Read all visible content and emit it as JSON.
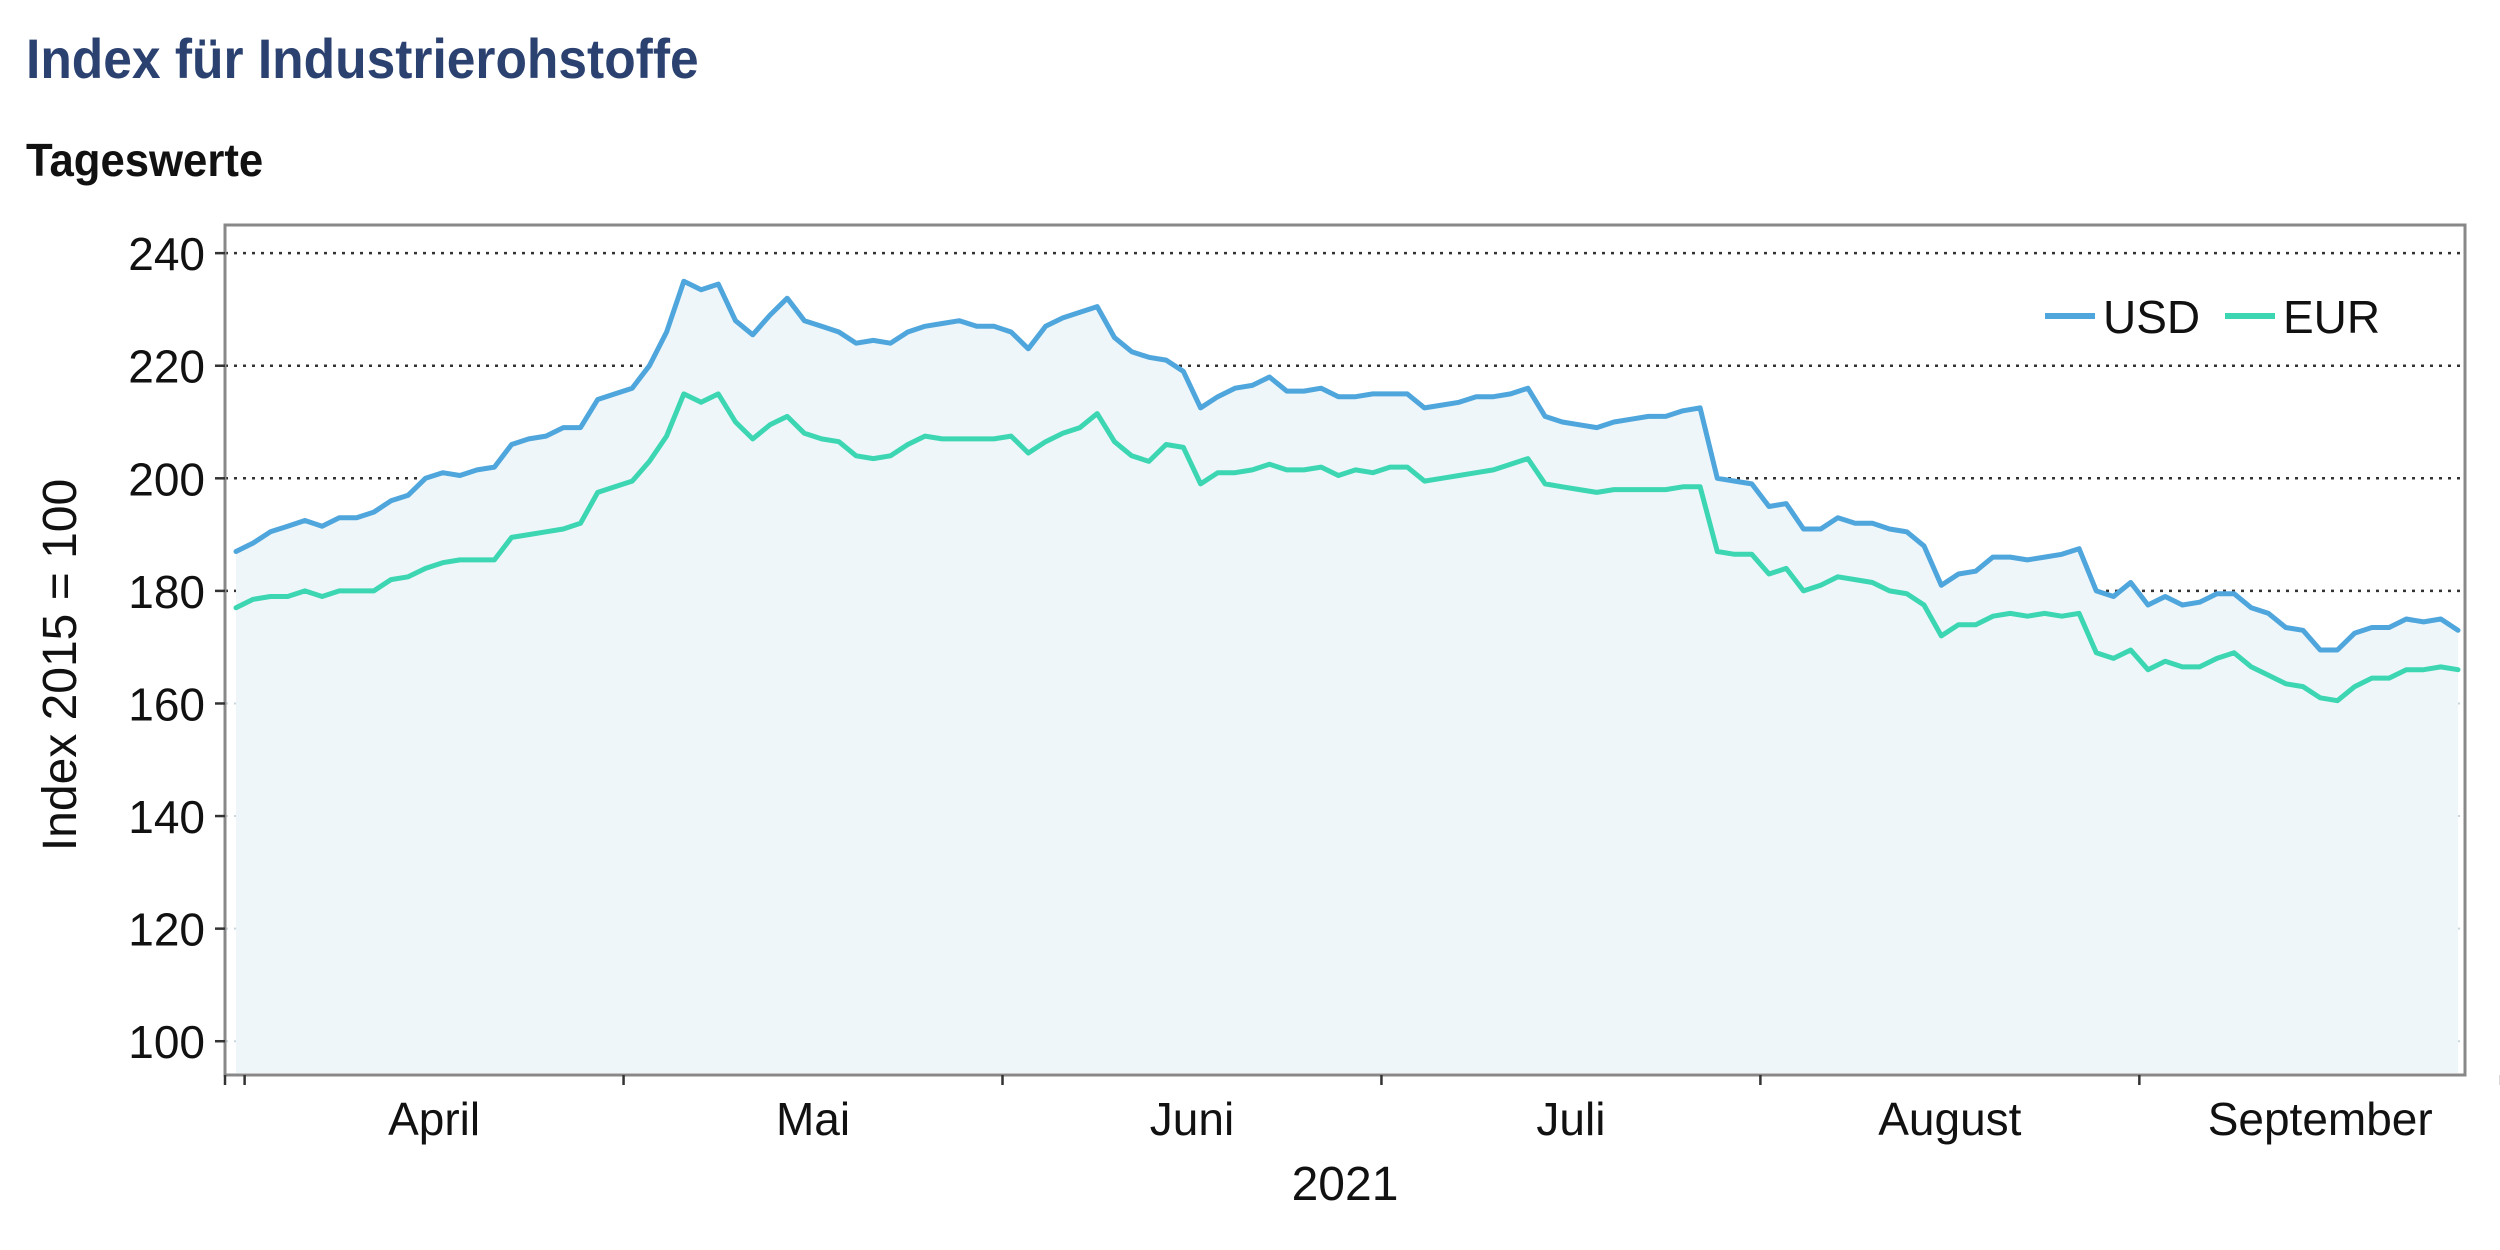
{
  "title": "Index für Industrierohstoffe",
  "subtitle": "Tageswerte",
  "colors": {
    "usd": "#4fa6dc",
    "eur": "#3dd6b2",
    "area": "#eef6fa",
    "title": "#2b4271"
  },
  "chart_data": {
    "type": "line",
    "title": "Index für Industrierohstoffe",
    "subtitle": "Tageswerte",
    "xlabel": "2021",
    "ylabel": "Index 2015 = 100",
    "ylim": [
      94,
      245
    ],
    "yticks": [
      100,
      120,
      140,
      160,
      180,
      200,
      220,
      240
    ],
    "grid": "horizontal dotted",
    "legend_position": "top-right",
    "area_under": "USD",
    "x_period": "2021-03-29 to 2021-09-30 (daily, business days)",
    "months": [
      "April",
      "Mai",
      "Juni",
      "Juli",
      "August",
      "September"
    ],
    "series": [
      {
        "name": "USD",
        "color": "#4fa6dc",
        "values": [
          187,
          188.5,
          190.5,
          191.5,
          192.5,
          191.5,
          193,
          193,
          194,
          196,
          197,
          200,
          201,
          200.5,
          201.5,
          202,
          206,
          207,
          207.5,
          209,
          209,
          214,
          215,
          216,
          220,
          226,
          235,
          233.5,
          234.5,
          228,
          225.5,
          229,
          232,
          228,
          227,
          226,
          224,
          224.5,
          224,
          226,
          227,
          227.5,
          228,
          227,
          227,
          226,
          223,
          227,
          228.5,
          229.5,
          230.5,
          225,
          222.5,
          221.5,
          221,
          219,
          212.5,
          214.5,
          216,
          216.5,
          218,
          215.5,
          215.5,
          216,
          214.5,
          214.5,
          215,
          215,
          215,
          212.5,
          213,
          213.5,
          214.5,
          214.5,
          215,
          216,
          211,
          210,
          209.5,
          209,
          210,
          210.5,
          211,
          211,
          212,
          212.5,
          200,
          199.5,
          199,
          195,
          195.5,
          191,
          191,
          193,
          192,
          192,
          191,
          190.5,
          188,
          181,
          183,
          183.5,
          186,
          186,
          185.5,
          186,
          186.5,
          187.5,
          180,
          179,
          181.5,
          177.5,
          179,
          177.5,
          178,
          179.5,
          179.5,
          177,
          176,
          173.5,
          173,
          169.5,
          169.5,
          172.5,
          173.5,
          173.5,
          175,
          174.5,
          175,
          173
        ]
      },
      {
        "name": "EUR",
        "color": "#3dd6b2",
        "values": [
          177,
          178.5,
          179,
          179,
          180,
          179,
          180,
          180,
          180,
          182,
          182.5,
          184,
          185,
          185.5,
          185.5,
          185.5,
          189.5,
          190,
          190.5,
          191,
          192,
          197.5,
          198.5,
          199.5,
          203,
          207.5,
          215,
          213.5,
          215,
          210,
          207,
          209.5,
          211,
          208,
          207,
          206.5,
          204,
          203.5,
          204,
          206,
          207.5,
          207,
          207,
          207,
          207,
          207.5,
          204.5,
          206.5,
          208,
          209,
          211.5,
          206.5,
          204,
          203,
          206,
          205.5,
          199,
          201,
          201,
          201.5,
          202.5,
          201.5,
          201.5,
          202,
          200.5,
          201.5,
          201,
          202,
          202,
          199.5,
          200,
          200.5,
          201,
          201.5,
          202.5,
          203.5,
          199,
          198.5,
          198,
          197.5,
          198,
          198,
          198,
          198,
          198.5,
          198.5,
          187,
          186.5,
          186.5,
          183,
          184,
          180,
          181,
          182.5,
          182,
          181.5,
          180,
          179.5,
          177.5,
          172,
          174,
          174,
          175.5,
          176,
          175.5,
          176,
          175.5,
          176,
          169,
          168,
          169.5,
          166,
          167.5,
          166.5,
          166.5,
          168,
          169,
          166.5,
          165,
          163.5,
          163,
          161,
          160.5,
          163,
          164.5,
          164.5,
          166,
          166,
          166.5,
          166
        ]
      }
    ]
  }
}
